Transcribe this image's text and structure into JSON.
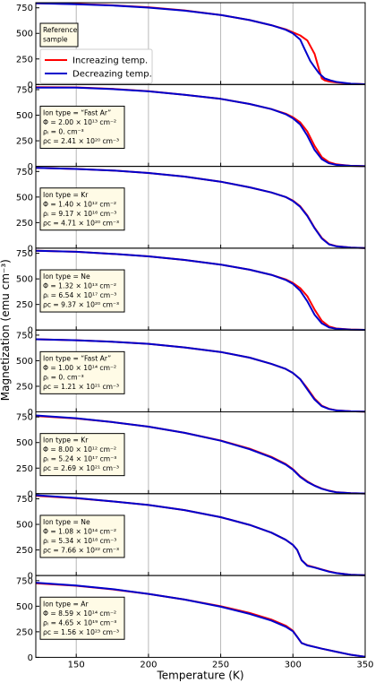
{
  "chart_data": {
    "type": "line",
    "xlabel": "Temperature (K)",
    "ylabel": "Magnetization (emu cm⁻³)",
    "xlim": [
      122,
      350
    ],
    "ylim": [
      0,
      800
    ],
    "xticks": [
      150,
      200,
      250,
      300,
      350
    ],
    "yticks": [
      0,
      250,
      500,
      750
    ],
    "grid": "vertical",
    "legend": {
      "placement": "left, inside first panel",
      "entries": [
        {
          "label": "Increazing temp.",
          "color": "#ff0000"
        },
        {
          "label": "Decreazing temp.",
          "color": "#0000cc"
        }
      ]
    },
    "panels": [
      {
        "info": [
          "Reference",
          "sample"
        ],
        "series": [
          {
            "name": "Increazing temp.",
            "color": "#ff0000",
            "x": [
              122,
              150,
              175,
              200,
              225,
              250,
              270,
              285,
              295,
              300,
              305,
              310,
              315,
              318,
              320,
              322,
              325,
              330,
              340,
              350
            ],
            "y": [
              795,
              788,
              775,
              755,
              725,
              680,
              630,
              580,
              540,
              510,
              480,
              430,
              300,
              150,
              60,
              40,
              30,
              20,
              8,
              3
            ]
          },
          {
            "name": "Decreazing temp.",
            "color": "#0000cc",
            "x": [
              122,
              150,
              175,
              200,
              225,
              250,
              270,
              285,
              295,
              300,
              305,
              308,
              312,
              315,
              318,
              322,
              326,
              330,
              340,
              350
            ],
            "y": [
              795,
              785,
              773,
              752,
              722,
              680,
              630,
              580,
              535,
              500,
              440,
              350,
              230,
              170,
              110,
              60,
              40,
              25,
              8,
              3
            ]
          }
        ]
      },
      {
        "info": [
          "Ion type = “Fast Ar”",
          "Φ = 2.00 × 10¹³  cm⁻²",
          "ρᵢ = 0.  cm⁻³",
          "ρc = 2.41 × 10²⁰  cm⁻³"
        ],
        "series": [
          {
            "name": "Increazing temp.",
            "color": "#ff0000",
            "x": [
              122,
              150,
              175,
              200,
              225,
              250,
              270,
              285,
              295,
              300,
              305,
              310,
              315,
              320,
              325,
              330,
              340,
              350
            ],
            "y": [
              775,
              772,
              758,
              735,
              700,
              660,
              610,
              560,
              515,
              480,
              430,
              340,
              200,
              90,
              40,
              20,
              5,
              2
            ]
          },
          {
            "name": "Decreazing temp.",
            "color": "#0000cc",
            "x": [
              122,
              150,
              175,
              200,
              225,
              250,
              270,
              285,
              295,
              300,
              305,
              310,
              315,
              320,
              325,
              330,
              340,
              350
            ],
            "y": [
              770,
              770,
              755,
              733,
              700,
              660,
              610,
              560,
              510,
              470,
              410,
              300,
              160,
              70,
              30,
              15,
              5,
              2
            ]
          }
        ]
      },
      {
        "info": [
          "Ion type = Kr",
          "Φ = 1.40 × 10¹²  cm⁻²",
          "ρᵢ = 9.17 × 10¹⁶  cm⁻³",
          "ρc = 4.71 × 10²⁰  cm⁻³"
        ],
        "series": [
          {
            "name": "Increazing temp.",
            "color": "#ff0000",
            "x": [
              122,
              150,
              175,
              200,
              225,
              250,
              270,
              285,
              295,
              300,
              305,
              310,
              315,
              320,
              325,
              330,
              340,
              350
            ],
            "y": [
              785,
              775,
              760,
              735,
              700,
              650,
              595,
              545,
              500,
              465,
              410,
              320,
              200,
              100,
              40,
              20,
              5,
              2
            ]
          },
          {
            "name": "Decreazing temp.",
            "color": "#0000cc",
            "x": [
              122,
              150,
              175,
              200,
              225,
              250,
              270,
              285,
              295,
              300,
              305,
              310,
              315,
              320,
              325,
              330,
              340,
              350
            ],
            "y": [
              785,
              775,
              760,
              735,
              700,
              650,
              595,
              545,
              500,
              462,
              405,
              315,
              195,
              95,
              38,
              18,
              5,
              2
            ]
          }
        ]
      },
      {
        "info": [
          "Ion type = Ne",
          "Φ = 1.32 × 10¹³  cm⁻²",
          "ρᵢ = 6.54 × 10¹⁷  cm⁻³",
          "ρc = 9.37 × 10²⁰  cm⁻³"
        ],
        "series": [
          {
            "name": "Increazing temp.",
            "color": "#ff0000",
            "x": [
              122,
              150,
              175,
              200,
              225,
              250,
              270,
              285,
              295,
              300,
              305,
              310,
              315,
              320,
              325,
              330,
              340,
              350
            ],
            "y": [
              775,
              765,
              745,
              720,
              685,
              640,
              590,
              540,
              495,
              460,
              410,
              330,
              200,
              90,
              35,
              15,
              5,
              2
            ]
          },
          {
            "name": "Decreazing temp.",
            "color": "#0000cc",
            "x": [
              122,
              150,
              175,
              200,
              225,
              250,
              270,
              285,
              295,
              300,
              305,
              310,
              315,
              320,
              325,
              330,
              340,
              350
            ],
            "y": [
              775,
              765,
              745,
              720,
              685,
              640,
              590,
              540,
              490,
              450,
              385,
              280,
              150,
              65,
              25,
              12,
              4,
              2
            ]
          }
        ]
      },
      {
        "info": [
          "Ion type = “Fast Ar”",
          "Φ = 1.00 × 10¹⁴  cm⁻²",
          "ρᵢ = 0.  cm⁻³",
          "ρc = 1.21 × 10²¹  cm⁻³"
        ],
        "series": [
          {
            "name": "Increazing temp.",
            "color": "#ff0000",
            "x": [
              122,
              150,
              175,
              200,
              225,
              250,
              270,
              285,
              295,
              300,
              305,
              310,
              315,
              320,
              325,
              330,
              340,
              350
            ],
            "y": [
              710,
              700,
              685,
              665,
              630,
              585,
              530,
              470,
              420,
              380,
              320,
              230,
              130,
              60,
              30,
              15,
              5,
              2
            ]
          },
          {
            "name": "Decreazing temp.",
            "color": "#0000cc",
            "x": [
              122,
              150,
              175,
              200,
              225,
              250,
              270,
              285,
              295,
              300,
              305,
              310,
              315,
              320,
              325,
              330,
              340,
              350
            ],
            "y": [
              710,
              700,
              685,
              665,
              630,
              585,
              530,
              470,
              420,
              380,
              320,
              220,
              120,
              55,
              28,
              14,
              5,
              2
            ]
          }
        ]
      },
      {
        "info": [
          "Ion type = Kr",
          "Φ = 8.00 × 10¹²  cm⁻²",
          "ρᵢ = 5.24 × 10¹⁷  cm⁻³",
          "ρc = 2.69 × 10²¹  cm⁻³"
        ],
        "series": [
          {
            "name": "Increazing temp.",
            "color": "#ff0000",
            "x": [
              122,
              150,
              175,
              200,
              225,
              250,
              270,
              285,
              295,
              300,
              305,
              310,
              315,
              320,
              325,
              330,
              340,
              350
            ],
            "y": [
              760,
              735,
              700,
              655,
              595,
              520,
              440,
              360,
              290,
              240,
              170,
              120,
              80,
              50,
              30,
              15,
              5,
              2
            ]
          },
          {
            "name": "Decreazing temp.",
            "color": "#0000cc",
            "x": [
              122,
              150,
              175,
              200,
              225,
              250,
              270,
              285,
              295,
              300,
              305,
              310,
              315,
              320,
              325,
              330,
              340,
              350
            ],
            "y": [
              765,
              738,
              700,
              655,
              595,
              518,
              435,
              355,
              285,
              235,
              165,
              115,
              78,
              48,
              28,
              14,
              5,
              2
            ]
          }
        ]
      },
      {
        "info": [
          "Ion type = Ne",
          "Φ = 1.08 × 10¹⁴  cm⁻²",
          "ρᵢ = 5.34 × 10¹⁸  cm⁻³",
          "ρc = 7.66 × 10²²  cm⁻³"
        ],
        "series": [
          {
            "name": "Increazing temp.",
            "color": "#ff0000",
            "x": [
              122,
              150,
              175,
              200,
              225,
              250,
              270,
              285,
              295,
              300,
              303,
              306,
              310,
              315,
              320,
              325,
              330,
              340,
              350
            ],
            "y": [
              780,
              755,
              725,
              690,
              640,
              570,
              495,
              420,
              350,
              300,
              250,
              150,
              100,
              80,
              60,
              40,
              25,
              8,
              3
            ]
          },
          {
            "name": "Decreazing temp.",
            "color": "#0000cc",
            "x": [
              122,
              150,
              175,
              200,
              225,
              250,
              270,
              285,
              295,
              300,
              303,
              306,
              310,
              315,
              320,
              325,
              330,
              340,
              350
            ],
            "y": [
              785,
              758,
              725,
              690,
              640,
              570,
              495,
              420,
              350,
              300,
              250,
              150,
              95,
              78,
              58,
              38,
              24,
              8,
              3
            ]
          }
        ]
      },
      {
        "info": [
          "Ion type = Ar",
          "Φ = 8.59 × 10¹⁴  cm⁻²",
          "ρᵢ = 4.65 × 10¹⁹  cm⁻³",
          "ρc = 1.56 × 10²³  cm⁻³"
        ],
        "series": [
          {
            "name": "Increazing temp.",
            "color": "#ff0000",
            "x": [
              122,
              150,
              175,
              200,
              225,
              250,
              270,
              285,
              295,
              300,
              303,
              306,
              310,
              320,
              330,
              340,
              350
            ],
            "y": [
              725,
              700,
              665,
              620,
              565,
              500,
              435,
              370,
              310,
              260,
              200,
              140,
              120,
              85,
              55,
              25,
              5
            ]
          },
          {
            "name": "Decreazing temp.",
            "color": "#0000cc",
            "x": [
              122,
              150,
              175,
              200,
              225,
              250,
              270,
              285,
              295,
              300,
              303,
              306,
              310,
              320,
              330,
              340,
              350
            ],
            "y": [
              730,
              703,
              668,
              620,
              565,
              495,
              425,
              360,
              300,
              255,
              200,
              140,
              118,
              85,
              55,
              25,
              5
            ]
          }
        ]
      }
    ]
  }
}
